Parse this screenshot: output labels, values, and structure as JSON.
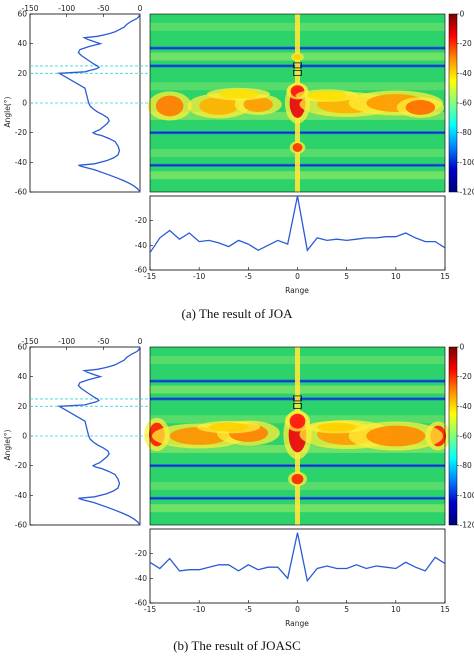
{
  "captions": {
    "a": "(a)  The result of JOA",
    "b": "(b)  The result of JOASC"
  },
  "colorbar": {
    "ticks": [
      "0",
      "-20",
      "-40",
      "-60",
      "-80",
      "-100",
      "-120"
    ],
    "colors": [
      "#7a0000",
      "#ff0000",
      "#ff8c00",
      "#ffff00",
      "#7fff7f",
      "#00ffff",
      "#0080ff",
      "#0000c8",
      "#00007a"
    ]
  },
  "chart_data": [
    {
      "panel": "a",
      "type": "line",
      "name": "angle-spectrum",
      "ylabel": "Angle(°)",
      "xlim": [
        -150,
        0
      ],
      "ylim": [
        -60,
        60
      ],
      "x_ticks": [
        "-150",
        "-100",
        "-50",
        "0"
      ],
      "y_ticks": [
        "60",
        "40",
        "20",
        "0",
        "-20",
        "-40",
        "-60"
      ],
      "dips_angle": [
        -42,
        -20,
        20,
        25,
        37
      ],
      "reference_angles": [
        25,
        20,
        0
      ],
      "curve": {
        "x": [
          0,
          -3,
          -8,
          -15,
          -24,
          -34,
          -45,
          -62,
          -78,
          -84,
          -62,
          -46,
          -36,
          -30,
          -28,
          -30,
          -34,
          -42,
          -52,
          -60,
          -64,
          -60,
          -55,
          -50,
          -45,
          -42,
          -44,
          -50,
          -58,
          -64,
          -68,
          -70,
          -72,
          -75,
          -110,
          -75,
          -68,
          -60,
          -56,
          -58,
          -62,
          -68,
          -74,
          -80,
          -84,
          -82,
          -76,
          -70,
          -62,
          -54,
          -60,
          -66,
          -72,
          -76,
          -58,
          -48,
          -40,
          -34,
          -30,
          -26,
          -22,
          -20,
          -18,
          -15,
          -12,
          -8,
          -4,
          -2,
          0
        ],
        "y": [
          -60,
          -58,
          -56,
          -54,
          -52,
          -50,
          -48,
          -45,
          -43,
          -42,
          -41,
          -39,
          -37,
          -35,
          -32,
          -29,
          -26,
          -24,
          -22,
          -21,
          -20,
          -19,
          -18,
          -16,
          -14,
          -12,
          -10,
          -8,
          -6,
          -4,
          -2,
          0,
          4,
          10,
          20,
          21,
          22,
          23,
          24,
          25,
          26,
          28,
          30,
          32,
          34,
          36,
          37,
          38,
          39,
          40,
          41,
          42,
          43,
          44,
          45,
          46,
          47,
          48,
          49,
          50,
          51,
          52,
          53,
          54,
          55,
          56,
          57,
          58,
          60
        ]
      }
    },
    {
      "panel": "a",
      "type": "heatmap",
      "name": "range-angle-map",
      "xlim": [
        -15,
        15
      ],
      "ylim": [
        -60,
        60
      ],
      "boxes": [
        {
          "range": 0,
          "angle": 25
        },
        {
          "range": 0,
          "angle": 20
        }
      ]
    },
    {
      "panel": "a",
      "type": "line",
      "name": "range-spectrum",
      "xlabel": "Range",
      "xlim": [
        -15,
        15
      ],
      "ylim": [
        -60,
        0
      ],
      "x_ticks": [
        "-15",
        "-10",
        "-5",
        "0",
        "5",
        "10",
        "15"
      ],
      "y_ticks": [
        "-20",
        "-40",
        "-60"
      ],
      "x": [
        -15,
        -14,
        -13,
        -12,
        -11,
        -10,
        -9,
        -8,
        -7,
        -6,
        -5,
        -4,
        -3,
        -2,
        -1,
        0,
        1,
        2,
        3,
        4,
        5,
        6,
        7,
        8,
        9,
        10,
        11,
        12,
        13,
        14,
        15
      ],
      "y": [
        -46,
        -34,
        -28,
        -35,
        -30,
        -37,
        -36,
        -38,
        -41,
        -36,
        -39,
        -44,
        -40,
        -36,
        -39,
        0,
        -44,
        -34,
        -36,
        -35,
        -36,
        -35,
        -34,
        -34,
        -33,
        -33,
        -30,
        -34,
        -37,
        -37,
        -42
      ]
    },
    {
      "panel": "b",
      "type": "line",
      "name": "angle-spectrum",
      "ylabel": "Angle(°)",
      "xlim": [
        -150,
        0
      ],
      "ylim": [
        -60,
        60
      ],
      "x_ticks": [
        "-150",
        "-100",
        "-50",
        "0"
      ],
      "y_ticks": [
        "60",
        "40",
        "20",
        "0",
        "-20",
        "-40",
        "-60"
      ],
      "dips_angle": [
        -42,
        -20,
        20,
        25,
        37
      ],
      "reference_angles": [
        25,
        20,
        0
      ],
      "curve": {
        "x": [
          0,
          -3,
          -8,
          -15,
          -24,
          -34,
          -45,
          -62,
          -78,
          -84,
          -62,
          -46,
          -36,
          -30,
          -28,
          -30,
          -34,
          -42,
          -52,
          -60,
          -64,
          -60,
          -55,
          -50,
          -45,
          -42,
          -44,
          -50,
          -58,
          -64,
          -68,
          -70,
          -72,
          -75,
          -110,
          -75,
          -68,
          -60,
          -56,
          -58,
          -62,
          -68,
          -74,
          -80,
          -84,
          -82,
          -76,
          -70,
          -62,
          -54,
          -60,
          -66,
          -72,
          -76,
          -58,
          -48,
          -40,
          -34,
          -30,
          -26,
          -22,
          -20,
          -18,
          -15,
          -12,
          -8,
          -4,
          -2,
          0
        ],
        "y": [
          -60,
          -58,
          -56,
          -54,
          -52,
          -50,
          -48,
          -45,
          -43,
          -42,
          -41,
          -39,
          -37,
          -35,
          -32,
          -29,
          -26,
          -24,
          -22,
          -21,
          -20,
          -19,
          -18,
          -16,
          -14,
          -12,
          -10,
          -8,
          -6,
          -4,
          -2,
          0,
          4,
          10,
          20,
          21,
          22,
          23,
          24,
          25,
          26,
          28,
          30,
          32,
          34,
          36,
          37,
          38,
          39,
          40,
          41,
          42,
          43,
          44,
          45,
          46,
          47,
          48,
          49,
          50,
          51,
          52,
          53,
          54,
          55,
          56,
          57,
          58,
          60
        ]
      }
    },
    {
      "panel": "b",
      "type": "heatmap",
      "name": "range-angle-map",
      "xlim": [
        -15,
        15
      ],
      "ylim": [
        -60,
        60
      ],
      "boxes": [
        {
          "range": 0,
          "angle": 25
        },
        {
          "range": 0,
          "angle": 20
        }
      ]
    },
    {
      "panel": "b",
      "type": "line",
      "name": "range-spectrum",
      "xlabel": "Range",
      "xlim": [
        -15,
        15
      ],
      "ylim": [
        -60,
        0
      ],
      "x_ticks": [
        "-15",
        "-10",
        "-5",
        "0",
        "5",
        "10",
        "15"
      ],
      "y_ticks": [
        "-20",
        "-40",
        "-60"
      ],
      "x": [
        -15,
        -14,
        -13,
        -12,
        -11,
        -10,
        -9,
        -8,
        -7,
        -6,
        -5,
        -4,
        -3,
        -2,
        -1,
        0,
        1,
        2,
        3,
        4,
        5,
        6,
        7,
        8,
        9,
        10,
        11,
        12,
        13,
        14,
        15
      ],
      "y": [
        -27,
        -32,
        -24,
        -34,
        -33,
        -33,
        -31,
        -29,
        -29,
        -34,
        -29,
        -33,
        -31,
        -31,
        -40,
        -3,
        -42,
        -32,
        -30,
        -32,
        -32,
        -29,
        -32,
        -30,
        -31,
        -32,
        -27,
        -31,
        -34,
        -23,
        -28
      ]
    }
  ]
}
